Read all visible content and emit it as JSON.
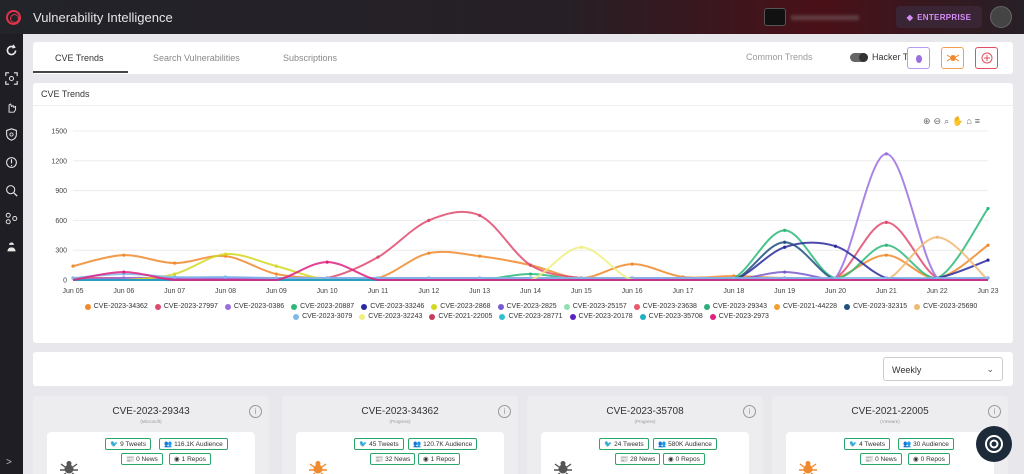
{
  "app": {
    "title": "Vulnerability Intelligence",
    "plan_badge": "ENTERPRISE"
  },
  "icons": {
    "logo": "ring-logo-icon",
    "badge": "diamond-icon",
    "avatar": "avatar-icon"
  },
  "sidebar": {
    "items": [
      "refresh-icon",
      "scan-icon",
      "hand-icon",
      "shield-icon",
      "alert-icon",
      "cyber-icon",
      "network-icon",
      "hacker-icon"
    ],
    "expand": ">"
  },
  "tabs": {
    "items": [
      {
        "label": "CVE Trends"
      },
      {
        "label": "Search Vulnerabilities"
      },
      {
        "label": "Subscriptions"
      }
    ],
    "active": 0
  },
  "trend_toggle": {
    "left_label": "Common Trends",
    "right_label": "Hacker Trends",
    "state": "Hacker Trends"
  },
  "chart_panel": {
    "title": "CVE Trends"
  },
  "chart_data": {
    "type": "line",
    "title": "CVE Trends",
    "x": [
      "Jun 05",
      "Jun 06",
      "Jun 07",
      "Jun 08",
      "Jun 09",
      "Jun 10",
      "Jun 11",
      "Jun 12",
      "Jun 13",
      "Jun 14",
      "Jun 15",
      "Jun 16",
      "Jun 17",
      "Jun 18",
      "Jun 19",
      "Jun 20",
      "Jun 21",
      "Jun 22",
      "Jun 23"
    ],
    "ylim": [
      0,
      1500
    ],
    "yticks": [
      0,
      300,
      600,
      900,
      1200,
      1500
    ],
    "legend_position": "bottom",
    "series": [
      {
        "name": "CVE-2023-34362",
        "color": "#f08a2c",
        "values": [
          140,
          250,
          170,
          240,
          60,
          20,
          20,
          270,
          240,
          150,
          20,
          160,
          30,
          40,
          20,
          20,
          250,
          20,
          350
        ]
      },
      {
        "name": "CVE-2023-27997",
        "color": "#e04a6e",
        "values": [
          20,
          20,
          20,
          20,
          20,
          20,
          230,
          600,
          650,
          150,
          20,
          20,
          20,
          20,
          20,
          20,
          580,
          20,
          20
        ]
      },
      {
        "name": "CVE-2023-0386",
        "color": "#9b6ee0",
        "values": [
          0,
          20,
          20,
          20,
          20,
          20,
          20,
          20,
          20,
          20,
          20,
          20,
          20,
          20,
          20,
          20,
          1270,
          20,
          20
        ]
      },
      {
        "name": "CVE-2023-20887",
        "color": "#2cb87a",
        "values": [
          0,
          0,
          0,
          0,
          0,
          0,
          0,
          0,
          0,
          60,
          0,
          0,
          0,
          20,
          500,
          20,
          350,
          20,
          720
        ]
      },
      {
        "name": "CVE-2023-33246",
        "color": "#2a2aa0",
        "values": [
          0,
          0,
          0,
          0,
          0,
          0,
          0,
          0,
          0,
          0,
          0,
          0,
          0,
          0,
          330,
          340,
          20,
          20,
          200
        ]
      },
      {
        "name": "CVE-2023-2868",
        "color": "#d4d820",
        "values": [
          0,
          0,
          60,
          260,
          140,
          0,
          0,
          0,
          0,
          0,
          0,
          0,
          0,
          0,
          0,
          0,
          0,
          0,
          0
        ]
      },
      {
        "name": "CVE-2023-2825",
        "color": "#7a5ad0",
        "values": [
          0,
          0,
          0,
          0,
          0,
          0,
          0,
          0,
          0,
          0,
          0,
          0,
          0,
          0,
          80,
          0,
          0,
          0,
          0
        ]
      },
      {
        "name": "CVE-2023-25157",
        "color": "#90e0b0",
        "values": [
          0,
          0,
          0,
          0,
          0,
          0,
          0,
          0,
          0,
          0,
          0,
          0,
          0,
          0,
          0,
          0,
          0,
          0,
          0
        ]
      },
      {
        "name": "CVE-2023-23638",
        "color": "#e85a6a",
        "values": [
          0,
          0,
          0,
          0,
          0,
          0,
          0,
          0,
          0,
          0,
          0,
          0,
          0,
          0,
          0,
          0,
          0,
          0,
          0
        ]
      },
      {
        "name": "CVE-2023-29343",
        "color": "#2cb07a",
        "values": [
          0,
          0,
          0,
          0,
          0,
          0,
          0,
          0,
          0,
          0,
          0,
          0,
          0,
          0,
          0,
          0,
          0,
          0,
          0
        ]
      },
      {
        "name": "CVE-2021-44228",
        "color": "#f0a030",
        "values": [
          0,
          0,
          0,
          0,
          0,
          0,
          0,
          0,
          0,
          0,
          0,
          0,
          0,
          0,
          0,
          0,
          0,
          0,
          0
        ]
      },
      {
        "name": "CVE-2023-32315",
        "color": "#205080",
        "values": [
          0,
          0,
          0,
          0,
          0,
          0,
          0,
          0,
          0,
          0,
          0,
          0,
          0,
          0,
          380,
          0,
          0,
          0,
          0
        ]
      },
      {
        "name": "CVE-2023-25690",
        "color": "#f0b870",
        "values": [
          0,
          0,
          0,
          0,
          0,
          0,
          0,
          0,
          0,
          0,
          0,
          0,
          0,
          0,
          0,
          0,
          0,
          430,
          0
        ]
      },
      {
        "name": "CVE-2023-3079",
        "color": "#80b8e8",
        "values": [
          20,
          60,
          30,
          30,
          20,
          20,
          20,
          20,
          20,
          20,
          20,
          20,
          20,
          20,
          20,
          20,
          20,
          20,
          20
        ]
      },
      {
        "name": "CVE-2023-32243",
        "color": "#f0f080",
        "values": [
          0,
          0,
          0,
          0,
          0,
          0,
          0,
          0,
          0,
          0,
          330,
          0,
          0,
          0,
          0,
          0,
          0,
          0,
          0
        ]
      },
      {
        "name": "CVE-2021-22005",
        "color": "#c83c5c",
        "values": [
          0,
          0,
          0,
          0,
          0,
          0,
          0,
          0,
          0,
          0,
          0,
          0,
          0,
          0,
          0,
          0,
          0,
          0,
          0
        ]
      },
      {
        "name": "CVE-2023-28771",
        "color": "#30c0d0",
        "values": [
          0,
          0,
          0,
          0,
          0,
          0,
          0,
          0,
          0,
          0,
          0,
          0,
          0,
          0,
          0,
          0,
          0,
          0,
          0
        ]
      },
      {
        "name": "CVE-2023-20178",
        "color": "#5a20c0",
        "values": [
          0,
          0,
          0,
          0,
          0,
          0,
          0,
          0,
          0,
          0,
          0,
          0,
          0,
          0,
          0,
          0,
          0,
          0,
          0
        ]
      },
      {
        "name": "CVE-2023-35708",
        "color": "#20b0c0",
        "values": [
          0,
          0,
          0,
          0,
          0,
          0,
          0,
          0,
          0,
          0,
          0,
          0,
          0,
          0,
          0,
          0,
          0,
          0,
          0
        ]
      },
      {
        "name": "CVE-2023-2973",
        "color": "#e02080",
        "values": [
          0,
          80,
          0,
          0,
          0,
          180,
          0,
          0,
          0,
          0,
          0,
          0,
          0,
          0,
          0,
          0,
          0,
          0,
          0
        ]
      }
    ]
  },
  "period_select": {
    "value": "Weekly"
  },
  "cards": [
    {
      "cve": "CVE-2023-29343",
      "vendor": "(Microsoft)",
      "icon": "bug-gray",
      "tweets": "9 Tweets",
      "audience": "116.1K Audience",
      "news": "0 News",
      "repos": "1 Repos"
    },
    {
      "cve": "CVE-2023-34362",
      "vendor": "(Progress)",
      "icon": "bug-orange",
      "tweets": "45 Tweets",
      "audience": "120.7K Audience",
      "news": "32 News",
      "repos": "1 Repos"
    },
    {
      "cve": "CVE-2023-35708",
      "vendor": "(Progress)",
      "icon": "bug-gray",
      "tweets": "24 Tweets",
      "audience": "580K Audience",
      "news": "28 News",
      "repos": "0 Repos"
    },
    {
      "cve": "CVE-2021-22005",
      "vendor": "(Vmware)",
      "icon": "bug-orange",
      "tweets": "4 Tweets",
      "audience": "30 Audience",
      "news": "0 News",
      "repos": "0 Repos"
    }
  ]
}
